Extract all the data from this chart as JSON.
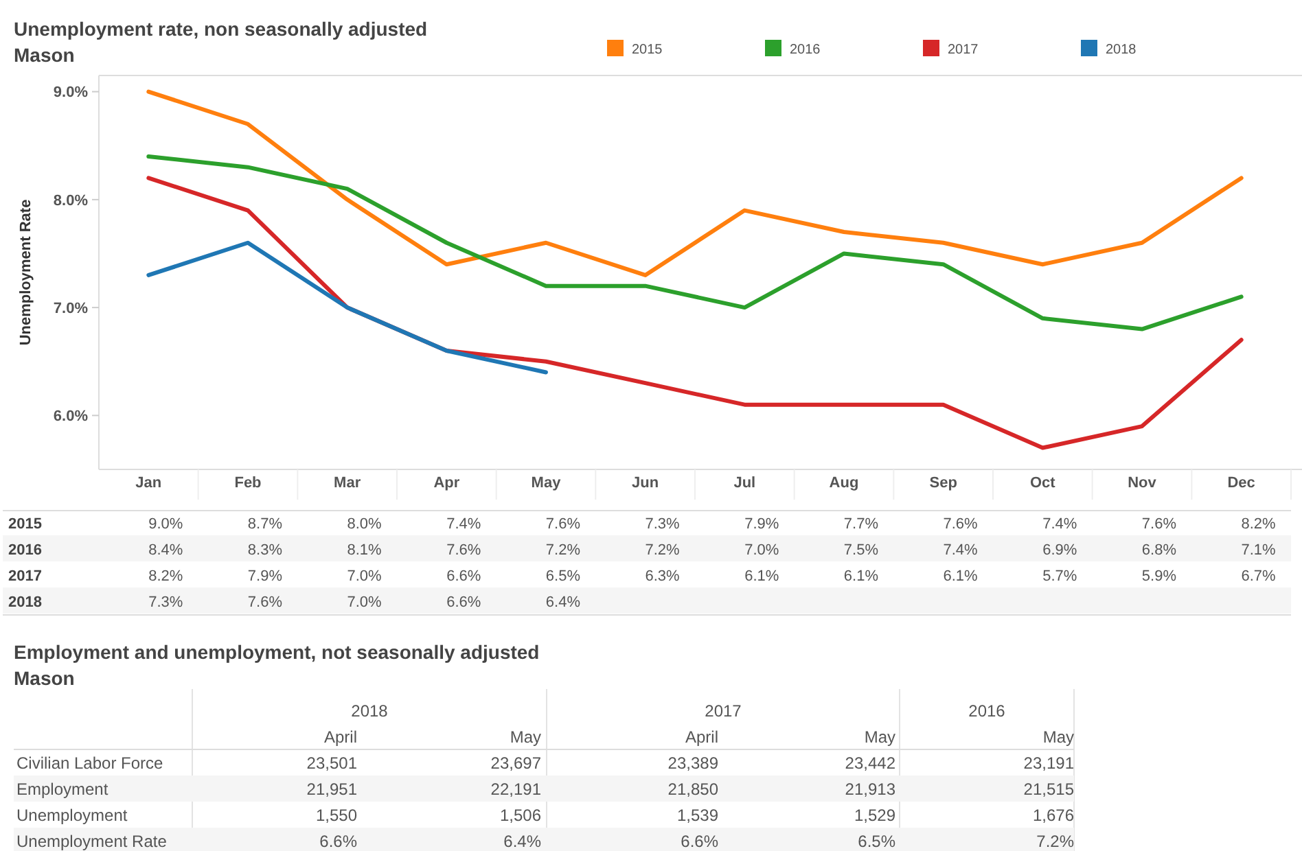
{
  "chart_data": [
    {
      "type": "line",
      "title": "Unemployment rate, non seasonally adjusted",
      "subtitle": "Mason",
      "ylabel": "Unemployment Rate",
      "categories": [
        "Jan",
        "Feb",
        "Mar",
        "Apr",
        "May",
        "Jun",
        "Jul",
        "Aug",
        "Sep",
        "Oct",
        "Nov",
        "Dec"
      ],
      "series": [
        {
          "name": "2015",
          "color": "#ff7f0e",
          "values": [
            9.0,
            8.7,
            8.0,
            7.4,
            7.6,
            7.3,
            7.9,
            7.7,
            7.6,
            7.4,
            7.6,
            8.2
          ],
          "value_labels": [
            "9.0%",
            "8.7%",
            "8.0%",
            "7.4%",
            "7.6%",
            "7.3%",
            "7.9%",
            "7.7%",
            "7.6%",
            "7.4%",
            "7.6%",
            "8.2%"
          ]
        },
        {
          "name": "2016",
          "color": "#2ca02c",
          "values": [
            8.4,
            8.3,
            8.1,
            7.6,
            7.2,
            7.2,
            7.0,
            7.5,
            7.4,
            6.9,
            6.8,
            7.1
          ],
          "value_labels": [
            "8.4%",
            "8.3%",
            "8.1%",
            "7.6%",
            "7.2%",
            "7.2%",
            "7.0%",
            "7.5%",
            "7.4%",
            "6.9%",
            "6.8%",
            "7.1%"
          ]
        },
        {
          "name": "2017",
          "color": "#d62728",
          "values": [
            8.2,
            7.9,
            7.0,
            6.6,
            6.5,
            6.3,
            6.1,
            6.1,
            6.1,
            5.7,
            5.9,
            6.7
          ],
          "value_labels": [
            "8.2%",
            "7.9%",
            "7.0%",
            "6.6%",
            "6.5%",
            "6.3%",
            "6.1%",
            "6.1%",
            "6.1%",
            "5.7%",
            "5.9%",
            "6.7%"
          ]
        },
        {
          "name": "2018",
          "color": "#1f77b4",
          "values": [
            7.3,
            7.6,
            7.0,
            6.6,
            6.4,
            null,
            null,
            null,
            null,
            null,
            null,
            null
          ],
          "value_labels": [
            "7.3%",
            "7.6%",
            "7.0%",
            "6.6%",
            "6.4%",
            null,
            null,
            null,
            null,
            null,
            null,
            null
          ]
        }
      ],
      "ylim": [
        5.5,
        9.15
      ],
      "yticks": [
        {
          "value": 6,
          "label": "6.0%"
        },
        {
          "value": 7,
          "label": "7.0%"
        },
        {
          "value": 8,
          "label": "8.0%"
        },
        {
          "value": 9,
          "label": "9.0%"
        }
      ],
      "grid": false,
      "legend": "top",
      "marker": "none",
      "line_style": "solid"
    },
    {
      "type": "other",
      "title": "Employment and unemployment, not seasonally adjusted",
      "subtitle": "Mason",
      "annotations": [
        "2018",
        "2017",
        "2016"
      ],
      "categories": [
        "April",
        "May",
        "April",
        "May",
        "May"
      ],
      "y_categories": [
        "Civilian Labor Force",
        "Employment",
        "Unemployment",
        "Unemployment Rate"
      ],
      "cell_labels": [
        [
          "23,501",
          "23,697",
          "23,389",
          "23,442",
          "23,191"
        ],
        [
          "21,951",
          "22,191",
          "21,850",
          "21,913",
          "21,515"
        ],
        [
          "1,550",
          "1,506",
          "1,539",
          "1,529",
          "1,676"
        ],
        [
          "6.6%",
          "6.4%",
          "6.6%",
          "6.5%",
          "7.2%"
        ]
      ]
    }
  ]
}
